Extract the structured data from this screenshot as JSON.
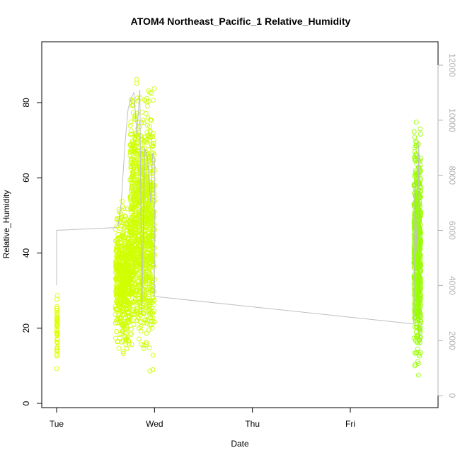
{
  "chart_data": {
    "type": "scatter",
    "title": "ATOM4 Northeast_Pacific_1 Relative_Humidity",
    "xlabel": "Date",
    "ylabel": "Relative_Humidity",
    "x_ticks": [
      "Tue",
      "Wed",
      "Thu",
      "Fri"
    ],
    "x_tick_positions_days": [
      0,
      1,
      2,
      3
    ],
    "xlim_days": [
      -0.2,
      3.8
    ],
    "ylim": [
      0,
      95
    ],
    "y_ticks": [
      0,
      20,
      40,
      60,
      80
    ],
    "y2_ticks": [
      0,
      2000,
      4000,
      6000,
      8000,
      10000,
      12000
    ],
    "y2lim": [
      0,
      12500
    ],
    "grid": false,
    "legend": "none",
    "point_marker": "open-circle",
    "colors": {
      "points_early": "#ddff00",
      "points_late": "#99ff00",
      "altitude_line": "#c0c0c0",
      "right_axis": "#b0b0b0"
    },
    "clusters": [
      {
        "x_range_days": [
          0.0,
          0.01
        ],
        "y_range": [
          6,
          32
        ],
        "n": 45
      },
      {
        "x_range_days": [
          0.6,
          0.75
        ],
        "y_range": [
          10,
          57
        ],
        "n": 520
      },
      {
        "x_range_days": [
          0.75,
          0.88
        ],
        "y_range": [
          3,
          92
        ],
        "n": 580
      },
      {
        "x_range_days": [
          0.88,
          1.0
        ],
        "y_range": [
          3,
          92
        ],
        "n": 520
      },
      {
        "x_range_days": [
          3.65,
          3.72
        ],
        "y_range": [
          2,
          80
        ],
        "n": 650
      }
    ],
    "altitude_line": [
      [
        0.0,
        4000
      ],
      [
        0.0,
        6000
      ],
      [
        0.6,
        6100
      ],
      [
        0.63,
        6200
      ],
      [
        0.66,
        7000
      ],
      [
        0.7,
        9200
      ],
      [
        0.73,
        10400
      ],
      [
        0.76,
        10800
      ],
      [
        0.79,
        11000
      ],
      [
        0.82,
        9500
      ],
      [
        0.85,
        11100
      ],
      [
        0.87,
        3000
      ],
      [
        0.9,
        9000
      ],
      [
        0.93,
        8600
      ],
      [
        0.96,
        7000
      ],
      [
        0.98,
        8800
      ],
      [
        1.0,
        8600
      ],
      [
        1.0,
        3600
      ],
      [
        3.65,
        2600
      ],
      [
        3.66,
        7800
      ],
      [
        3.68,
        5200
      ],
      [
        3.7,
        9200
      ],
      [
        3.71,
        1800
      ]
    ]
  }
}
